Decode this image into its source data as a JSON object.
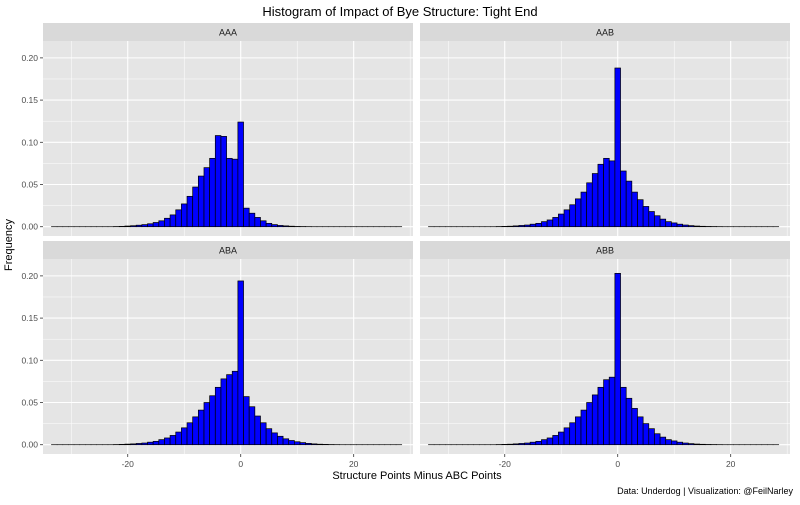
{
  "chart_data": {
    "type": "bar",
    "title": "Histogram of Impact of Bye Structure: Tight End",
    "xlabel": "Structure Points Minus ABC Points",
    "ylabel": "Frequency",
    "caption": "Data: Underdog | Visualization: @FeilNarley",
    "x_ticks": [
      -20,
      0,
      20
    ],
    "y_ticks": [
      0.0,
      0.05,
      0.1,
      0.15,
      0.2
    ],
    "y_tick_labels": [
      "0.00",
      "0.05",
      "0.10",
      "0.15",
      "0.20"
    ],
    "x_tick_labels": [
      "-20",
      "0",
      "20"
    ],
    "xlim": [
      -35,
      30.5
    ],
    "ylim": [
      -0.011,
      0.22
    ],
    "bin_width": 1,
    "grid": true,
    "colors": {
      "bar_fill": "#0000ff",
      "bar_outline": "#000000",
      "panel_bg": "#e5e5e5",
      "strip_bg": "#d9d9d9",
      "grid": "#ffffff"
    },
    "panels": [
      {
        "name": "AAA",
        "x": [
          -33,
          -32,
          -31,
          -30,
          -29,
          -28,
          -27,
          -26,
          -25,
          -24,
          -23,
          -22,
          -21,
          -20,
          -19,
          -18,
          -17,
          -16,
          -15,
          -14,
          -13,
          -12,
          -11,
          -10,
          -9,
          -8,
          -7,
          -6,
          -5,
          -4,
          -3,
          -2,
          -1,
          0,
          1,
          2,
          3,
          4,
          5,
          6,
          7,
          8,
          9,
          10,
          11,
          12,
          13,
          14,
          15,
          16,
          17,
          18,
          19,
          20,
          21,
          22,
          23,
          24,
          25,
          26,
          27,
          28
        ],
        "values": [
          0,
          0,
          0,
          0,
          0,
          0,
          0,
          0,
          0,
          0,
          0,
          0.0002,
          0.0004,
          0.0008,
          0.0012,
          0.0018,
          0.0025,
          0.0035,
          0.005,
          0.007,
          0.01,
          0.014,
          0.02,
          0.027,
          0.036,
          0.047,
          0.06,
          0.07,
          0.081,
          0.108,
          0.107,
          0.081,
          0.08,
          0.124,
          0.022,
          0.016,
          0.011,
          0.007,
          0.004,
          0.0025,
          0.0015,
          0.001,
          0.0006,
          0.0003,
          0.0002,
          0.0001,
          0,
          0,
          0,
          0,
          0,
          0,
          0,
          0,
          0,
          0,
          0,
          0,
          0,
          0,
          0,
          0
        ]
      },
      {
        "name": "AAB",
        "x": [
          -33,
          -32,
          -31,
          -30,
          -29,
          -28,
          -27,
          -26,
          -25,
          -24,
          -23,
          -22,
          -21,
          -20,
          -19,
          -18,
          -17,
          -16,
          -15,
          -14,
          -13,
          -12,
          -11,
          -10,
          -9,
          -8,
          -7,
          -6,
          -5,
          -4,
          -3,
          -2,
          -1,
          0,
          1,
          2,
          3,
          4,
          5,
          6,
          7,
          8,
          9,
          10,
          11,
          12,
          13,
          14,
          15,
          16,
          17,
          18,
          19,
          20,
          21,
          22,
          23,
          24,
          25,
          26,
          27,
          28
        ],
        "values": [
          0,
          0,
          0,
          0,
          0,
          0,
          0,
          0,
          0,
          0,
          0,
          0,
          0.0002,
          0.0004,
          0.0006,
          0.001,
          0.0015,
          0.002,
          0.003,
          0.004,
          0.006,
          0.008,
          0.011,
          0.015,
          0.02,
          0.026,
          0.033,
          0.041,
          0.052,
          0.063,
          0.074,
          0.081,
          0.078,
          0.188,
          0.066,
          0.054,
          0.041,
          0.032,
          0.024,
          0.018,
          0.013,
          0.009,
          0.006,
          0.0045,
          0.003,
          0.002,
          0.0013,
          0.0008,
          0.0005,
          0.0003,
          0.0002,
          0.0001,
          0,
          0,
          0,
          0,
          0,
          0,
          0,
          0,
          0,
          0
        ]
      },
      {
        "name": "ABA",
        "x": [
          -33,
          -32,
          -31,
          -30,
          -29,
          -28,
          -27,
          -26,
          -25,
          -24,
          -23,
          -22,
          -21,
          -20,
          -19,
          -18,
          -17,
          -16,
          -15,
          -14,
          -13,
          -12,
          -11,
          -10,
          -9,
          -8,
          -7,
          -6,
          -5,
          -4,
          -3,
          -2,
          -1,
          0,
          1,
          2,
          3,
          4,
          5,
          6,
          7,
          8,
          9,
          10,
          11,
          12,
          13,
          14,
          15,
          16,
          17,
          18,
          19,
          20,
          21,
          22,
          23,
          24,
          25,
          26,
          27,
          28
        ],
        "values": [
          0,
          0,
          0,
          0,
          0,
          0,
          0,
          0,
          0,
          0,
          0,
          0.0002,
          0.0004,
          0.0007,
          0.001,
          0.0015,
          0.002,
          0.003,
          0.004,
          0.006,
          0.008,
          0.011,
          0.015,
          0.02,
          0.026,
          0.033,
          0.041,
          0.05,
          0.058,
          0.068,
          0.078,
          0.083,
          0.087,
          0.194,
          0.057,
          0.045,
          0.034,
          0.026,
          0.019,
          0.014,
          0.01,
          0.007,
          0.005,
          0.0035,
          0.0025,
          0.0016,
          0.001,
          0.0006,
          0.0004,
          0.0002,
          0.0001,
          0,
          0,
          0,
          0,
          0,
          0,
          0,
          0,
          0,
          0,
          0
        ]
      },
      {
        "name": "ABB",
        "x": [
          -33,
          -32,
          -31,
          -30,
          -29,
          -28,
          -27,
          -26,
          -25,
          -24,
          -23,
          -22,
          -21,
          -20,
          -19,
          -18,
          -17,
          -16,
          -15,
          -14,
          -13,
          -12,
          -11,
          -10,
          -9,
          -8,
          -7,
          -6,
          -5,
          -4,
          -3,
          -2,
          -1,
          0,
          1,
          2,
          3,
          4,
          5,
          6,
          7,
          8,
          9,
          10,
          11,
          12,
          13,
          14,
          15,
          16,
          17,
          18,
          19,
          20,
          21,
          22,
          23,
          24,
          25,
          26,
          27,
          28
        ],
        "values": [
          0,
          0,
          0,
          0,
          0,
          0,
          0,
          0,
          0,
          0,
          0,
          0,
          0.0002,
          0.0004,
          0.0006,
          0.001,
          0.0015,
          0.002,
          0.003,
          0.004,
          0.006,
          0.008,
          0.011,
          0.015,
          0.02,
          0.026,
          0.033,
          0.041,
          0.05,
          0.059,
          0.068,
          0.077,
          0.08,
          0.203,
          0.068,
          0.055,
          0.043,
          0.033,
          0.025,
          0.019,
          0.013,
          0.009,
          0.006,
          0.0045,
          0.003,
          0.002,
          0.0013,
          0.0008,
          0.0005,
          0.0003,
          0.0002,
          0.0001,
          0,
          0,
          0,
          0,
          0,
          0,
          0,
          0,
          0,
          0
        ]
      }
    ]
  }
}
